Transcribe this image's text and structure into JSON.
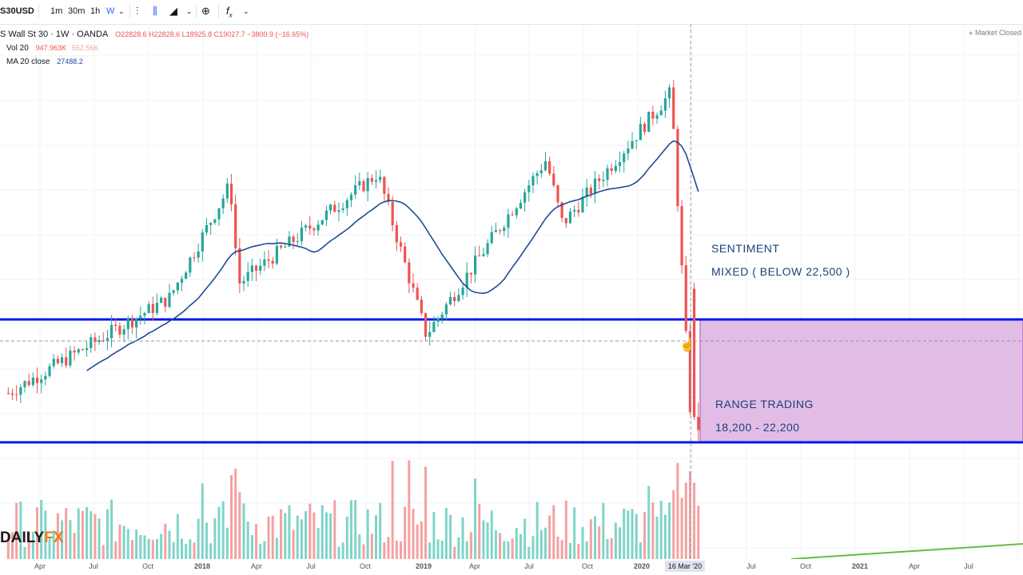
{
  "toolbar": {
    "symbol": "S30USD",
    "intervals": [
      "1m",
      "30m",
      "1h",
      "W"
    ],
    "fx_label": "f",
    "fx_sub": "x"
  },
  "legend": {
    "title": "S Wall St 30 · 1W · OANDA",
    "ohlc": "O22828.6  H22828.6  L18925.8  C19027.7  −3800.9 (−16.65%)",
    "vol_label": "Vol 20",
    "vol_values": "947.963K",
    "vol_values2": "552.56K",
    "ma_label": "MA 20 close",
    "ma_value": "27488.2"
  },
  "status": {
    "label": "Market Closed"
  },
  "annotations": {
    "sentiment_line1": "SENTIMENT",
    "sentiment_line2": "MIXED ( BELOW 22,500 )",
    "range_line1": "RANGE TRADING",
    "range_line2": "18,200 - 22,200"
  },
  "logo": {
    "part1": "DAILY",
    "part2": "FX"
  },
  "colors": {
    "up": "#26a69a",
    "down": "#ef5350",
    "ma": "#1e4a9a",
    "level_line": "#0019e6",
    "range_box": "#e1bde6",
    "range_border": "#a64bb5",
    "volume_up": "#7fd4c8",
    "volume_down": "#f4a1a0",
    "trend_line": "#66bb44"
  },
  "x_axis": {
    "labels": [
      "Apr",
      "Jul",
      "Oct",
      "2018",
      "Apr",
      "Jul",
      "Oct",
      "2019",
      "Apr",
      "Jul",
      "Oct",
      "2020",
      "16 Mar '20",
      "Jul",
      "Oct",
      "2021",
      "Apr",
      "Jul"
    ]
  },
  "chart_data": {
    "type": "candlestick",
    "title": "Wall St 30 · 1W · OANDA",
    "y_range": [
      17000,
      30000
    ],
    "levels": [
      {
        "name": "upper range level",
        "value": 22200
      },
      {
        "name": "lower range level",
        "value": 18200
      }
    ],
    "range_box": {
      "from_date": "2020-04-01",
      "to_date": "2021-09-30",
      "low": 18200,
      "high": 22200
    },
    "last_close": 19027.7,
    "key_points": [
      {
        "date": "2017-01",
        "close": 19800
      },
      {
        "date": "2017-10",
        "close": 22900
      },
      {
        "date": "2018-01-26",
        "high": 26600
      },
      {
        "date": "2018-02-09",
        "low": 23360
      },
      {
        "date": "2018-10-03",
        "high": 26950
      },
      {
        "date": "2018-12-24",
        "low": 21700
      },
      {
        "date": "2019-07-15",
        "high": 27400
      },
      {
        "date": "2019-08-12",
        "low": 25300
      },
      {
        "date": "2020-02-12",
        "high": 29600
      },
      {
        "date": "2020-03-16",
        "close": 19027.7
      },
      {
        "date": "2020-03-23",
        "low": 18200
      }
    ],
    "moving_average": {
      "name": "MA 20 close",
      "last": 27488.2
    }
  }
}
